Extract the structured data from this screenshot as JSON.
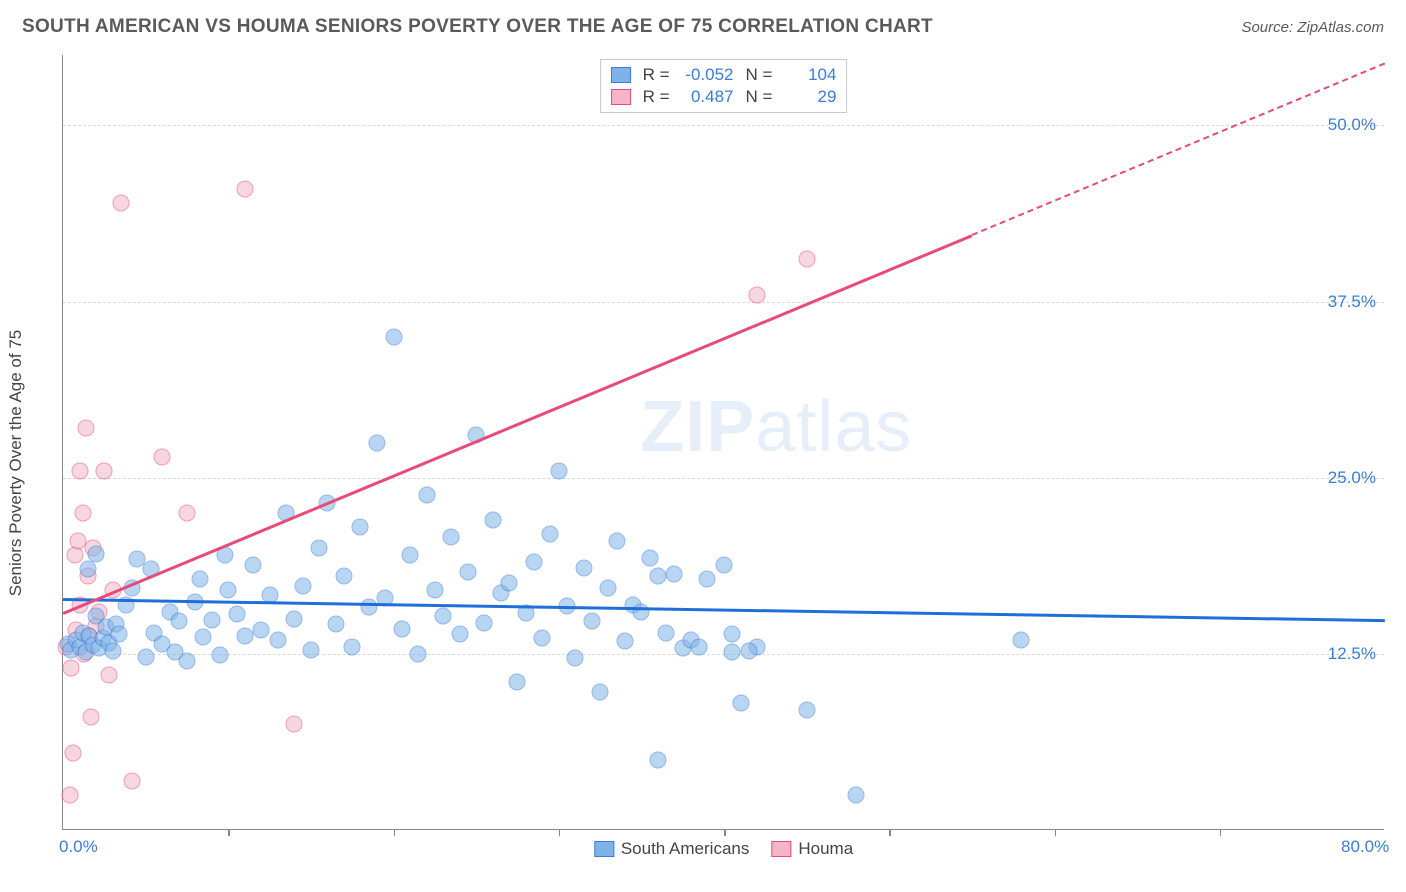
{
  "title": "SOUTH AMERICAN VS HOUMA SENIORS POVERTY OVER THE AGE OF 75 CORRELATION CHART",
  "source": "Source: ZipAtlas.com",
  "watermark": {
    "bold": "ZIP",
    "light": "atlas"
  },
  "chart": {
    "type": "scatter",
    "ylabel": "Seniors Poverty Over the Age of 75",
    "xlim": [
      0,
      80
    ],
    "ylim": [
      0,
      55
    ],
    "xtick_labels": [
      {
        "v": 0,
        "label": "0.0%"
      },
      {
        "v": 80,
        "label": "80.0%"
      }
    ],
    "xticks_minor": [
      10,
      20,
      30,
      40,
      50,
      60,
      70
    ],
    "ytick_labels": [
      {
        "v": 12.5,
        "label": "12.5%"
      },
      {
        "v": 25.0,
        "label": "25.0%"
      },
      {
        "v": 37.5,
        "label": "37.5%"
      },
      {
        "v": 50.0,
        "label": "50.0%"
      }
    ],
    "grid_color": "#d8d8d8",
    "axis_color": "#888888",
    "background_color": "#ffffff",
    "marker_radius": 8.5,
    "marker_opacity": 0.55,
    "series": [
      {
        "name": "South Americans",
        "color_fill": "#7fb3e8",
        "color_stroke": "#3b7dd8",
        "R": "-0.052",
        "N": "104",
        "trend": {
          "x1": 0,
          "y1": 16.5,
          "x2": 80,
          "y2": 15.0,
          "color": "#1f6fd8",
          "solid_until_x": 80
        },
        "points": [
          [
            0.3,
            13.2
          ],
          [
            0.5,
            12.8
          ],
          [
            0.8,
            13.5
          ],
          [
            1.0,
            13.0
          ],
          [
            1.2,
            14.0
          ],
          [
            1.4,
            12.6
          ],
          [
            1.6,
            13.8
          ],
          [
            1.8,
            13.1
          ],
          [
            2.0,
            15.2
          ],
          [
            2.2,
            12.9
          ],
          [
            2.4,
            13.6
          ],
          [
            2.6,
            14.4
          ],
          [
            2.8,
            13.3
          ],
          [
            3.0,
            12.7
          ],
          [
            3.2,
            14.6
          ],
          [
            3.4,
            13.9
          ],
          [
            1.5,
            18.5
          ],
          [
            2.0,
            19.6
          ],
          [
            4.5,
            19.2
          ],
          [
            5.0,
            12.3
          ],
          [
            5.5,
            14.0
          ],
          [
            6.0,
            13.2
          ],
          [
            6.5,
            15.5
          ],
          [
            7.0,
            14.8
          ],
          [
            7.5,
            12.0
          ],
          [
            8.0,
            16.2
          ],
          [
            8.5,
            13.7
          ],
          [
            9.0,
            14.9
          ],
          [
            9.5,
            12.4
          ],
          [
            10.0,
            17.0
          ],
          [
            10.5,
            15.3
          ],
          [
            11.0,
            13.8
          ],
          [
            11.5,
            18.8
          ],
          [
            12.0,
            14.2
          ],
          [
            12.5,
            16.7
          ],
          [
            13.0,
            13.5
          ],
          [
            13.5,
            22.5
          ],
          [
            14.0,
            15.0
          ],
          [
            14.5,
            17.3
          ],
          [
            15.0,
            12.8
          ],
          [
            15.5,
            20.0
          ],
          [
            16.0,
            23.2
          ],
          [
            16.5,
            14.6
          ],
          [
            17.0,
            18.0
          ],
          [
            17.5,
            13.0
          ],
          [
            18.0,
            21.5
          ],
          [
            18.5,
            15.8
          ],
          [
            19.0,
            27.5
          ],
          [
            19.5,
            16.5
          ],
          [
            20.0,
            35.0
          ],
          [
            20.5,
            14.3
          ],
          [
            21.0,
            19.5
          ],
          [
            21.5,
            12.5
          ],
          [
            22.0,
            23.8
          ],
          [
            22.5,
            17.0
          ],
          [
            23.0,
            15.2
          ],
          [
            23.5,
            20.8
          ],
          [
            24.0,
            13.9
          ],
          [
            24.5,
            18.3
          ],
          [
            25.0,
            28.0
          ],
          [
            25.5,
            14.7
          ],
          [
            26.0,
            22.0
          ],
          [
            26.5,
            16.8
          ],
          [
            27.0,
            17.5
          ],
          [
            27.5,
            10.5
          ],
          [
            28.0,
            15.4
          ],
          [
            28.5,
            19.0
          ],
          [
            29.0,
            13.6
          ],
          [
            29.5,
            21.0
          ],
          [
            30.0,
            25.5
          ],
          [
            30.5,
            15.9
          ],
          [
            31.0,
            12.2
          ],
          [
            31.5,
            18.6
          ],
          [
            32.0,
            14.8
          ],
          [
            32.5,
            9.8
          ],
          [
            33.0,
            17.2
          ],
          [
            33.5,
            20.5
          ],
          [
            34.0,
            13.4
          ],
          [
            34.5,
            16.0
          ],
          [
            35.0,
            15.5
          ],
          [
            35.5,
            19.3
          ],
          [
            36.0,
            18.0
          ],
          [
            36.5,
            14.0
          ],
          [
            37.0,
            18.2
          ],
          [
            37.5,
            12.9
          ],
          [
            38.0,
            13.5
          ],
          [
            38.5,
            13.0
          ],
          [
            39.0,
            17.8
          ],
          [
            40.0,
            18.8
          ],
          [
            40.5,
            12.6
          ],
          [
            41.0,
            9.0
          ],
          [
            42.0,
            13.0
          ],
          [
            36.0,
            5.0
          ],
          [
            45.0,
            8.5
          ],
          [
            48.0,
            2.5
          ],
          [
            40.5,
            13.9
          ],
          [
            41.5,
            12.7
          ],
          [
            58.0,
            13.5
          ],
          [
            3.8,
            16.0
          ],
          [
            4.2,
            17.2
          ],
          [
            5.3,
            18.5
          ],
          [
            6.8,
            12.6
          ],
          [
            8.3,
            17.8
          ],
          [
            9.8,
            19.5
          ]
        ]
      },
      {
        "name": "Houma",
        "color_fill": "#f4b6c6",
        "color_stroke": "#e84a7a",
        "R": "0.487",
        "N": "29",
        "trend": {
          "x1": 0,
          "y1": 15.5,
          "x2": 80,
          "y2": 54.5,
          "color": "#e84a7a",
          "solid_until_x": 55
        },
        "points": [
          [
            0.2,
            13.0
          ],
          [
            0.5,
            11.5
          ],
          [
            0.8,
            14.2
          ],
          [
            1.0,
            16.0
          ],
          [
            1.3,
            12.5
          ],
          [
            1.5,
            18.0
          ],
          [
            1.8,
            20.0
          ],
          [
            2.0,
            14.5
          ],
          [
            1.2,
            22.5
          ],
          [
            2.5,
            25.5
          ],
          [
            0.7,
            19.5
          ],
          [
            3.0,
            17.0
          ],
          [
            1.6,
            13.8
          ],
          [
            2.2,
            15.5
          ],
          [
            0.9,
            20.5
          ],
          [
            1.4,
            28.5
          ],
          [
            3.5,
            44.5
          ],
          [
            6.0,
            26.5
          ],
          [
            1.0,
            25.5
          ],
          [
            2.8,
            11.0
          ],
          [
            1.7,
            8.0
          ],
          [
            4.2,
            3.5
          ],
          [
            0.4,
            2.5
          ],
          [
            7.5,
            22.5
          ],
          [
            11.0,
            45.5
          ],
          [
            14.0,
            7.5
          ],
          [
            42.0,
            38.0
          ],
          [
            45.0,
            40.5
          ],
          [
            0.6,
            5.5
          ]
        ]
      }
    ]
  }
}
